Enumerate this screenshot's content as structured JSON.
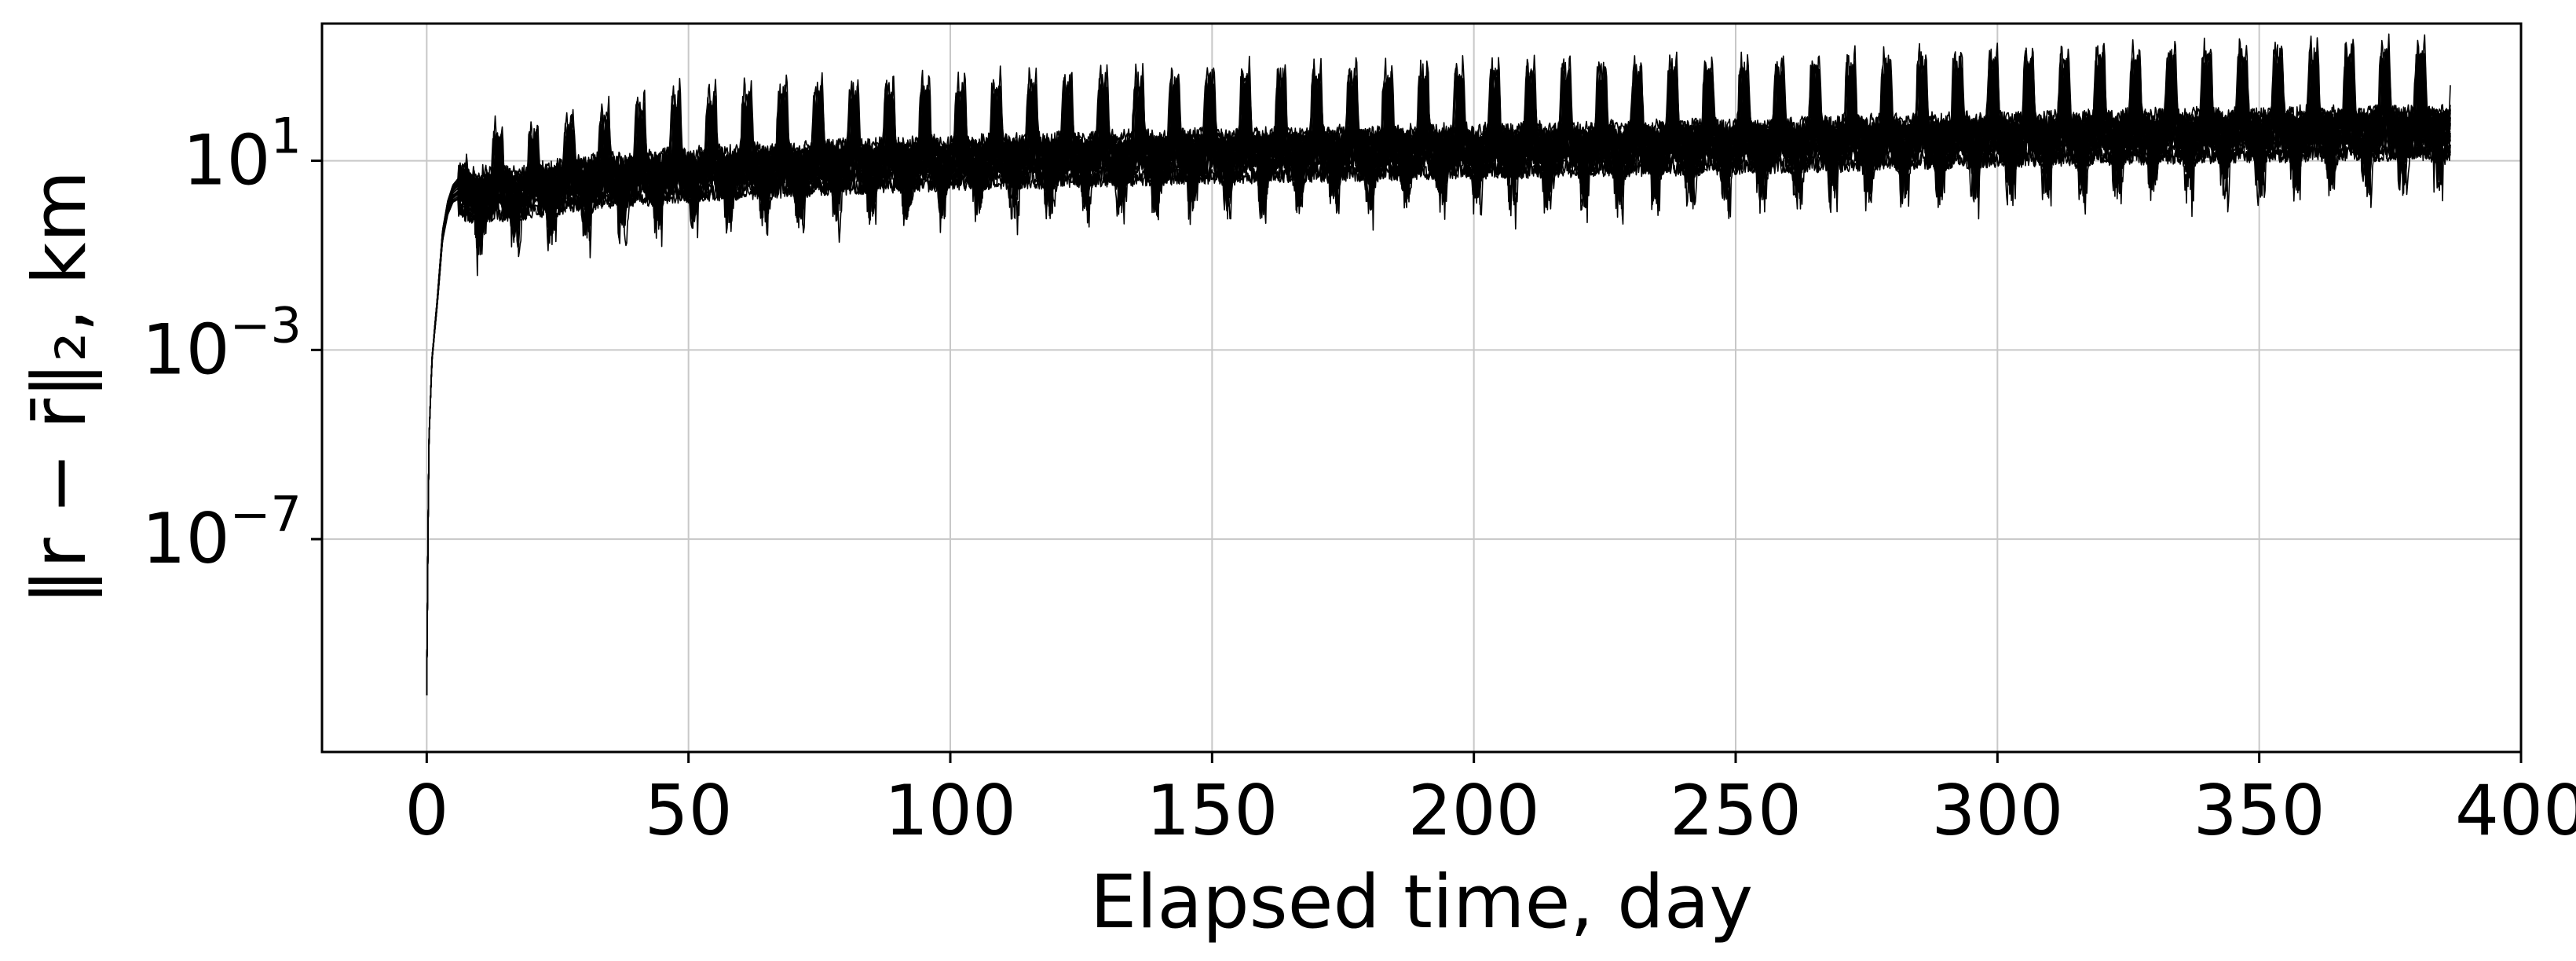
{
  "chart_data": {
    "type": "line",
    "title": "",
    "xlabel": "Elapsed time, day",
    "ylabel": "‖r − r̄‖₂, km",
    "x_scale": "linear",
    "y_scale": "log",
    "xlim": [
      -20,
      400
    ],
    "ylim_exponent": [
      -11.5,
      3.9
    ],
    "x_ticks": [
      {
        "value": 0,
        "label": "0"
      },
      {
        "value": 50,
        "label": "50"
      },
      {
        "value": 100,
        "label": "100"
      },
      {
        "value": 150,
        "label": "150"
      },
      {
        "value": 200,
        "label": "200"
      },
      {
        "value": 250,
        "label": "250"
      },
      {
        "value": 300,
        "label": "300"
      },
      {
        "value": 350,
        "label": "350"
      },
      {
        "value": 400,
        "label": "400"
      }
    ],
    "y_ticks": [
      {
        "exponent": 1,
        "base": "10",
        "exp_label": "1"
      },
      {
        "exponent": -3,
        "base": "10",
        "exp_label": "−3"
      },
      {
        "exponent": -7,
        "base": "10",
        "exp_label": "−7"
      }
    ],
    "grid": true,
    "legend": "none",
    "line_color": "#000000",
    "grid_color": "#c8c8c8",
    "series_count": 30,
    "x_end": 386.5,
    "spike_period_days": 6.8,
    "envelope": {
      "x": [
        0,
        0.4,
        1,
        2,
        3,
        4,
        5,
        6,
        8,
        10,
        15,
        20,
        30,
        50,
        75,
        100,
        150,
        200,
        250,
        300,
        350,
        386.5
      ],
      "y_exponent_median": [
        -10.3,
        -5.0,
        -3.2,
        -2.0,
        -0.6,
        0.0,
        0.3,
        0.4,
        0.25,
        0.3,
        0.3,
        0.35,
        0.55,
        0.7,
        0.85,
        0.95,
        1.1,
        1.2,
        1.3,
        1.45,
        1.55,
        1.6
      ],
      "y_exponent_spike_peak": [
        -10.3,
        -5.0,
        -3.2,
        -2.0,
        -0.6,
        0.0,
        0.3,
        0.4,
        0.7,
        1.5,
        1.3,
        1.4,
        1.7,
        2.2,
        2.3,
        2.4,
        2.6,
        2.7,
        2.8,
        3.0,
        3.1,
        3.2
      ],
      "y_exponent_dip_min": [
        -10.3,
        -5.0,
        -3.2,
        -2.0,
        -1.0,
        -0.4,
        -0.1,
        -0.2,
        -1.8,
        -1.0,
        -0.8,
        -0.6,
        -0.5,
        -0.3,
        -0.2,
        -0.1,
        0.0,
        0.1,
        0.2,
        0.3,
        0.4,
        0.5
      ]
    }
  }
}
